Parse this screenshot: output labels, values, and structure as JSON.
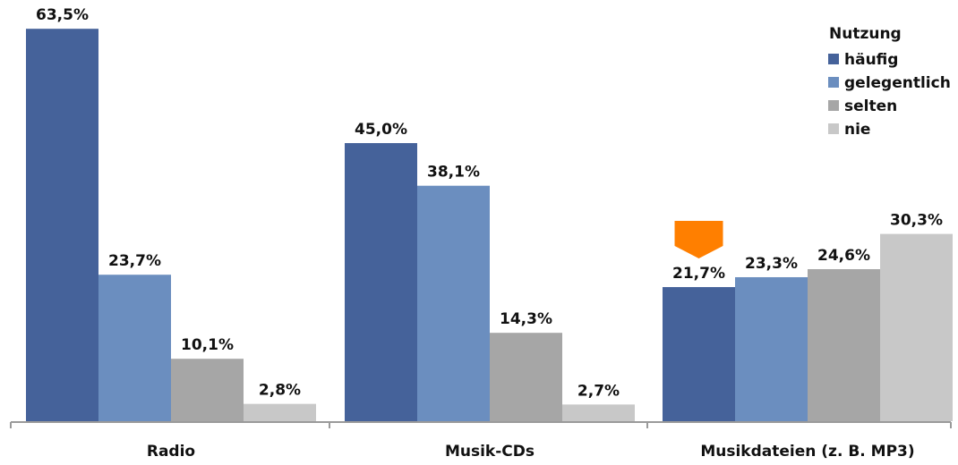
{
  "chart_data": {
    "type": "bar",
    "categories": [
      "Radio",
      "Musik-CDs",
      "Musikdateien (z. B. MP3)"
    ],
    "series": [
      {
        "name": "häufig",
        "color": "#45629a",
        "values": [
          63.5,
          45.0,
          21.7
        ],
        "labels": [
          "63,5%",
          "45,0%",
          "21,7%"
        ]
      },
      {
        "name": "gelegentlich",
        "color": "#6b8ebf",
        "values": [
          23.7,
          38.1,
          23.3
        ],
        "labels": [
          "23,7%",
          "38,1%",
          "23,3%"
        ]
      },
      {
        "name": "selten",
        "color": "#a6a6a6",
        "values": [
          10.1,
          14.3,
          24.6
        ],
        "labels": [
          "10,1%",
          "14,3%",
          "24,6%"
        ]
      },
      {
        "name": "nie",
        "color": "#c8c8c8",
        "values": [
          2.8,
          2.7,
          30.3
        ],
        "labels": [
          "2,8%",
          "2,7%",
          "30,3%"
        ]
      }
    ],
    "legend_title": "Nutzung",
    "legend_position": "top-right",
    "highlight_marker_color": "#ff7f00",
    "highlight": {
      "category": "Musikdateien (z. B. MP3)",
      "series": "häufig"
    },
    "ylim": [
      0,
      67
    ],
    "grid": false
  }
}
